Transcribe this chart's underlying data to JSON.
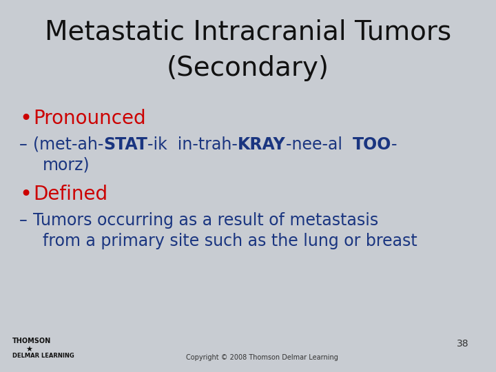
{
  "title_line1": "Metastatic Intracranial Tumors",
  "title_line2": "(Secondary)",
  "title_color": "#111111",
  "title_fontsize": 28,
  "background_color": "#c8ccd2",
  "bullet_color": "#cc0000",
  "bullet_fontsize": 20,
  "sub_color": "#1a3580",
  "sub_fontsize": 17,
  "page_number": "38",
  "copyright": "Copyright © 2008 Thomson Delmar Learning",
  "footer_color": "#333333"
}
